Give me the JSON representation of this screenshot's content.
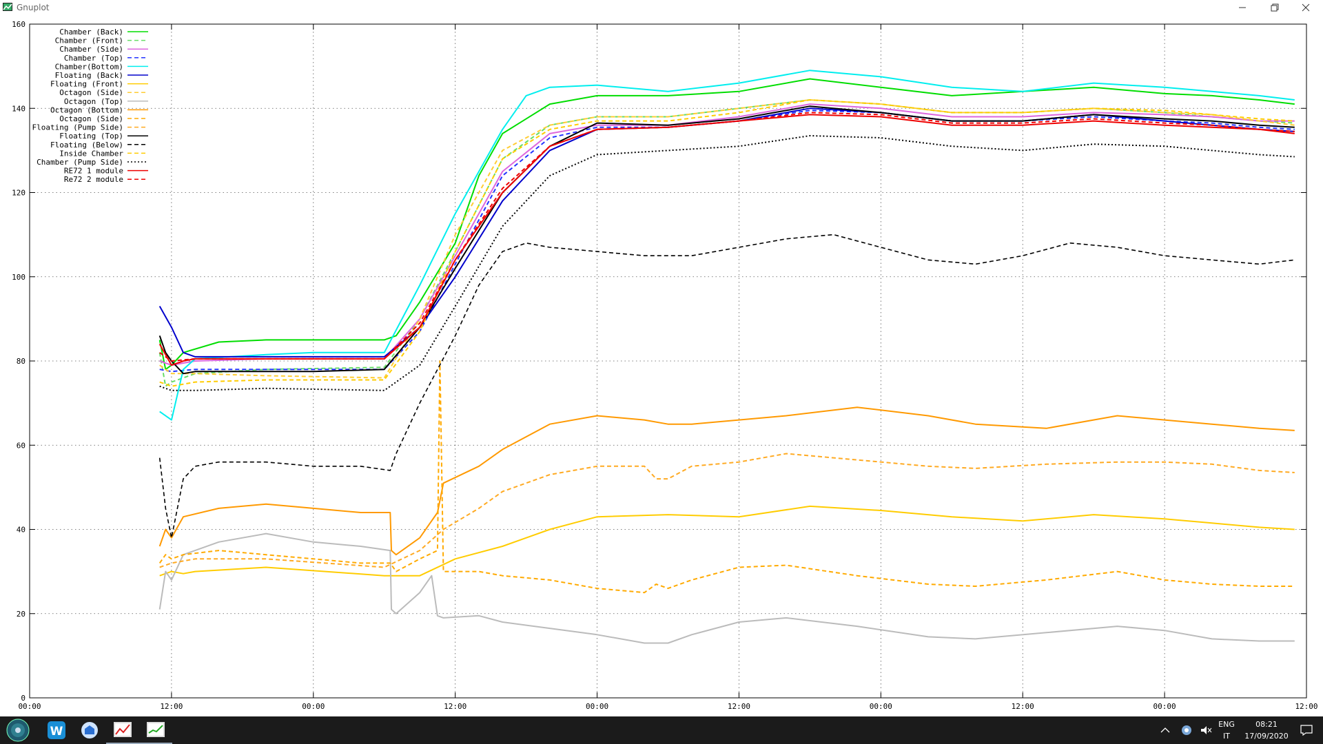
{
  "window": {
    "title": "Gnuplot"
  },
  "chart_data": {
    "type": "line",
    "title": "",
    "xlabel": "",
    "ylabel": "",
    "ylim": [
      0,
      160
    ],
    "y_ticks": [
      0,
      20,
      40,
      60,
      80,
      100,
      120,
      140,
      160
    ],
    "x_tick_labels": [
      "00:00",
      "12:00",
      "00:00",
      "12:00",
      "00:00",
      "12:00",
      "00:00",
      "12:00",
      "00:00",
      "12:00"
    ],
    "xlim_hours": [
      0,
      108
    ],
    "grid": true,
    "legend_position": "top-left",
    "series": [
      {
        "name": "Chamber (Back)",
        "color": "#00dd00",
        "dash": "solid",
        "x": [
          11,
          11.5,
          12,
          13,
          16,
          20,
          24,
          28,
          30,
          31,
          33,
          36,
          38,
          40,
          44,
          48,
          54,
          60,
          66,
          72,
          78,
          84,
          90,
          96,
          100,
          104,
          107
        ],
        "y": [
          85,
          78,
          79,
          82,
          84.5,
          85,
          85,
          85,
          85,
          86,
          94,
          108,
          124,
          134,
          141,
          143,
          143,
          144,
          147,
          145,
          143,
          144,
          145,
          143.5,
          143,
          142,
          141
        ]
      },
      {
        "name": "Chamber (Front)",
        "color": "#66dd66",
        "dash": "6,4",
        "x": [
          11,
          11.5,
          12,
          14,
          20,
          30,
          33,
          36,
          40,
          44,
          48,
          54,
          60,
          66,
          72,
          78,
          84,
          90,
          96,
          100,
          104,
          107
        ],
        "y": [
          82,
          74,
          75,
          77,
          78,
          78.5,
          90,
          106,
          128,
          136,
          138,
          138,
          140,
          142,
          141,
          139,
          139,
          140,
          139,
          138,
          137,
          136.5
        ]
      },
      {
        "name": "Chamber (Side)",
        "color": "#dd66dd",
        "dash": "solid",
        "x": [
          11,
          12,
          14,
          20,
          30,
          33,
          36,
          40,
          44,
          48,
          54,
          60,
          66,
          72,
          78,
          84,
          90,
          96,
          100,
          104,
          107
        ],
        "y": [
          80,
          79,
          80,
          80.5,
          80.5,
          90,
          105,
          125,
          134,
          136,
          136,
          138,
          141,
          140,
          138,
          138,
          139,
          138.5,
          138,
          137,
          137
        ]
      },
      {
        "name": "Chamber (Top)",
        "color": "#2233ff",
        "dash": "6,4",
        "x": [
          11,
          12,
          14,
          20,
          30,
          33,
          36,
          40,
          44,
          48,
          54,
          60,
          66,
          72,
          78,
          84,
          90,
          96,
          100,
          104,
          107
        ],
        "y": [
          78,
          77.5,
          78,
          78,
          78,
          87,
          103,
          124,
          133,
          135.5,
          135.5,
          137,
          139.5,
          139,
          137,
          137,
          138,
          137,
          136.5,
          135.5,
          135
        ]
      },
      {
        "name": "Chamber(Bottom)",
        "color": "#00eeee",
        "dash": "solid",
        "x": [
          11,
          12,
          13,
          14,
          20,
          24,
          30,
          33,
          36,
          40,
          42,
          44,
          48,
          54,
          60,
          66,
          72,
          78,
          84,
          90,
          96,
          100,
          104,
          107
        ],
        "y": [
          68,
          66,
          78,
          80.5,
          81.5,
          82,
          82,
          98,
          115,
          135,
          143,
          145,
          145.5,
          144,
          146,
          149,
          147.5,
          145,
          144,
          146,
          145,
          144,
          143,
          142
        ]
      },
      {
        "name": "Floating (Back)",
        "color": "#0000cc",
        "dash": "solid",
        "x": [
          11,
          12,
          13,
          14,
          20,
          30,
          33,
          36,
          40,
          44,
          48,
          54,
          60,
          66,
          72,
          78,
          84,
          90,
          96,
          100,
          104,
          107
        ],
        "y": [
          93,
          88,
          82,
          81,
          81,
          81,
          88,
          100,
          118,
          130,
          135,
          135.5,
          137,
          140,
          139,
          137,
          137,
          138.5,
          137,
          136,
          135,
          134.5
        ]
      },
      {
        "name": "Floating (Front)",
        "color": "#ffcc00",
        "dash": "solid",
        "x": [
          11,
          12,
          13,
          14,
          20,
          30,
          33,
          36,
          40,
          44,
          48,
          54,
          60,
          66,
          72,
          78,
          84,
          90,
          96,
          100,
          104,
          107
        ],
        "y": [
          29,
          30,
          29.5,
          30,
          31,
          29,
          29,
          33,
          36,
          40,
          43,
          43.5,
          43,
          45.5,
          44.5,
          43,
          42,
          43.5,
          42.5,
          41.5,
          40.5,
          40
        ]
      },
      {
        "name": "Octagon (Side)",
        "color": "#ffcc33",
        "dash": "6,4",
        "x": [
          11,
          12,
          14,
          20,
          30,
          33,
          36,
          40,
          44,
          48,
          54,
          60,
          66,
          72,
          78,
          84,
          90,
          96,
          100,
          104,
          107
        ],
        "y": [
          79,
          77,
          77,
          76.5,
          76,
          90,
          110,
          130,
          136,
          138,
          138,
          140,
          142,
          141,
          139,
          139,
          140,
          139,
          138.5,
          137,
          136
        ]
      },
      {
        "name": "Octagon (Top)",
        "color": "#bbbbbb",
        "dash": "solid",
        "x": [
          11,
          11.5,
          12,
          13,
          16,
          20,
          24,
          28,
          30.5,
          30.6,
          31,
          33,
          34,
          34.5,
          35,
          38,
          40,
          44,
          48,
          52,
          54,
          56,
          60,
          64,
          70,
          76,
          80,
          86,
          92,
          96,
          100,
          104,
          107
        ],
        "y": [
          21,
          30,
          28,
          34,
          37,
          39,
          37,
          36,
          35,
          21,
          20,
          25,
          29,
          19.5,
          19,
          19.5,
          18,
          16.5,
          15,
          13,
          13,
          15,
          18,
          19,
          17,
          14.5,
          14,
          15.5,
          17,
          16,
          14,
          13.5,
          13.5
        ]
      },
      {
        "name": "Octagon (Bottom)",
        "color": "#ff9900",
        "dash": "solid",
        "x": [
          11,
          11.5,
          12,
          13,
          16,
          20,
          24,
          28,
          30.5,
          30.6,
          31,
          33,
          34.5,
          35,
          38,
          40,
          44,
          48,
          52,
          54,
          56,
          60,
          64,
          70,
          76,
          80,
          86,
          92,
          96,
          100,
          104,
          107
        ],
        "y": [
          36,
          40,
          38,
          43,
          45,
          46,
          45,
          44,
          44,
          35,
          34,
          38,
          44,
          51,
          55,
          59,
          65,
          67,
          66,
          65,
          65,
          66,
          67,
          69,
          67,
          65,
          64,
          67,
          66,
          65,
          64,
          63.5
        ]
      },
      {
        "name": "Octagon (Side)",
        "color": "#ffaa00",
        "dash": "6,4",
        "x": [
          11,
          11.5,
          12,
          13,
          16,
          20,
          24,
          28,
          30.5,
          31,
          33,
          34.5,
          34.7,
          35,
          38,
          40,
          44,
          48,
          52,
          53,
          54,
          56,
          60,
          64,
          70,
          76,
          80,
          86,
          92,
          96,
          100,
          104,
          107
        ],
        "y": [
          32,
          34,
          33,
          34,
          35,
          34,
          33,
          32,
          32,
          30,
          33,
          35,
          80,
          30,
          30,
          29,
          28,
          26,
          25,
          27,
          26,
          28,
          31,
          31.5,
          29,
          27,
          26.5,
          28,
          30,
          28,
          27,
          26.5,
          26.5
        ]
      },
      {
        "name": "Floating (Pump Side)",
        "color": "#ffaa22",
        "dash": "6,4",
        "x": [
          11,
          12,
          14,
          20,
          30,
          33,
          35,
          38,
          40,
          44,
          48,
          52,
          53,
          54,
          56,
          60,
          64,
          70,
          76,
          80,
          86,
          92,
          96,
          100,
          104,
          107
        ],
        "y": [
          31,
          32,
          33,
          33,
          31,
          35,
          40,
          45,
          49,
          53,
          55,
          55,
          52,
          52,
          55,
          56,
          58,
          56.5,
          55,
          54.5,
          55.5,
          56,
          56,
          55.5,
          54,
          53.5
        ]
      },
      {
        "name": "Floating (Top)",
        "color": "#000000",
        "dash": "solid",
        "x": [
          11,
          11.5,
          12,
          13,
          14,
          20,
          24,
          30,
          33,
          36,
          40,
          44,
          48,
          54,
          60,
          66,
          72,
          78,
          84,
          90,
          96,
          100,
          104,
          107
        ],
        "y": [
          86,
          82,
          80,
          77,
          77.5,
          77.5,
          77.5,
          78,
          88,
          102,
          120,
          131,
          136.5,
          136,
          137.5,
          140.5,
          139,
          137,
          137,
          138.5,
          137.5,
          137,
          136,
          135.5
        ]
      },
      {
        "name": "Floating (Below)",
        "color": "#000000",
        "dash": "6,4",
        "x": [
          11,
          11.5,
          12,
          13,
          14,
          16,
          20,
          24,
          28,
          30.5,
          31,
          33,
          36,
          38,
          40,
          42,
          44,
          48,
          52,
          56,
          60,
          64,
          68,
          72,
          76,
          80,
          84,
          88,
          92,
          96,
          100,
          104,
          107
        ],
        "y": [
          57,
          45,
          38,
          52,
          55,
          56,
          56,
          55,
          55,
          54,
          58,
          70,
          86,
          98,
          106,
          108,
          107,
          106,
          105,
          105,
          107,
          109,
          110,
          107,
          104,
          103,
          105,
          108,
          107,
          105,
          104,
          103,
          104
        ]
      },
      {
        "name": "Inside Chamber",
        "color": "#ffcc00",
        "dash": "6,4",
        "x": [
          11,
          12,
          14,
          20,
          30,
          33,
          36,
          40,
          44,
          48,
          54,
          60,
          66,
          72,
          78,
          84,
          90,
          96,
          100,
          104,
          107
        ],
        "y": [
          75,
          74,
          75,
          75.5,
          75.5,
          87,
          106,
          128,
          135,
          137,
          137,
          139,
          142,
          141,
          139,
          139,
          140,
          139.5,
          138.5,
          137.5,
          137
        ]
      },
      {
        "name": "Chamber (Pump Side)",
        "color": "#000000",
        "dash": "2,3",
        "x": [
          11,
          12,
          14,
          20,
          30,
          33,
          36,
          40,
          44,
          48,
          54,
          60,
          66,
          72,
          78,
          84,
          90,
          96,
          100,
          104,
          107
        ],
        "y": [
          74,
          73,
          73,
          73.5,
          73,
          79,
          93,
          112,
          124,
          129,
          130,
          131,
          133.5,
          133,
          131,
          130,
          131.5,
          131,
          130,
          129,
          128.5
        ]
      },
      {
        "name": "RE72 1 module",
        "color": "#ee0000",
        "dash": "solid",
        "x": [
          11,
          12,
          13,
          14,
          20,
          30,
          33,
          36,
          40,
          44,
          48,
          54,
          60,
          66,
          72,
          78,
          84,
          90,
          96,
          100,
          104,
          107
        ],
        "y": [
          84,
          79,
          80,
          80.5,
          80.5,
          80.5,
          88,
          104,
          120,
          131,
          135,
          135.5,
          137,
          138.5,
          138,
          136,
          136,
          137,
          136,
          135.5,
          135,
          134
        ]
      },
      {
        "name": "Re72 2 module",
        "color": "#ee0000",
        "dash": "6,4",
        "x": [
          11,
          12,
          14,
          20,
          30,
          33,
          36,
          40,
          44,
          48,
          54,
          60,
          66,
          72,
          78,
          84,
          90,
          96,
          100,
          104,
          107
        ],
        "y": [
          82,
          80,
          80.5,
          80.5,
          80.5,
          89,
          104,
          121,
          131,
          135,
          135.5,
          137,
          139,
          138.5,
          136.5,
          136.5,
          137.5,
          136.5,
          136,
          135,
          134.5
        ]
      }
    ]
  },
  "taskbar": {
    "lang_top": "ENG",
    "lang_bottom": "IT",
    "time": "08:21",
    "date": "17/09/2020"
  }
}
